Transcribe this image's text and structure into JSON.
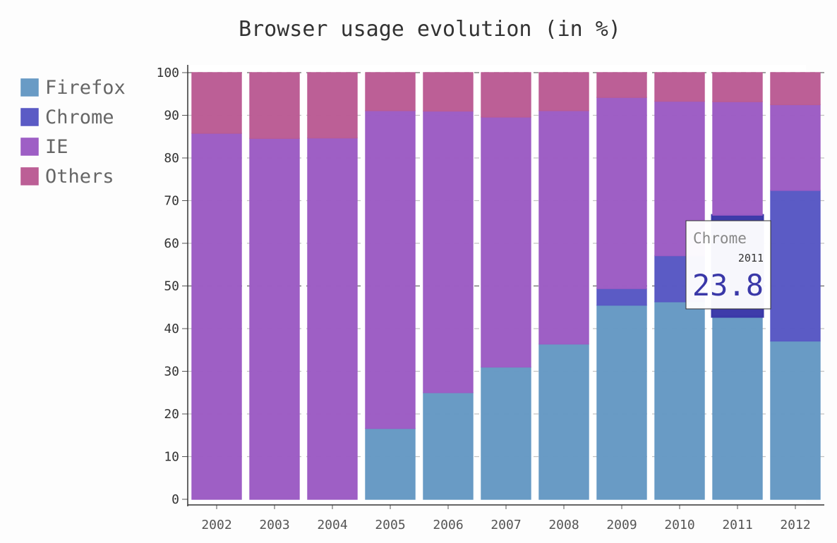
{
  "chart_data": {
    "type": "bar",
    "stacked": true,
    "title": "Browser usage evolution (in %)",
    "categories": [
      "2002",
      "2003",
      "2004",
      "2005",
      "2006",
      "2007",
      "2008",
      "2009",
      "2010",
      "2011",
      "2012"
    ],
    "series": [
      {
        "name": "Firefox",
        "color": "#6699c4",
        "values": [
          0,
          0,
          0,
          16.6,
          25,
          31,
          36.4,
          45.5,
          46.3,
          42.8,
          37.1
        ]
      },
      {
        "name": "Chrome",
        "color": "#5858c4",
        "values": [
          0,
          0,
          0,
          0,
          0,
          0,
          0,
          3.9,
          10.8,
          23.8,
          35.3
        ]
      },
      {
        "name": "IE",
        "color": "#9c5cc4",
        "values": [
          85.8,
          84.6,
          84.7,
          74.5,
          66,
          58.6,
          54.7,
          44.8,
          36.2,
          26.6,
          20.1
        ]
      },
      {
        "name": "Others",
        "color": "#bb5c94",
        "values": [
          14.2,
          15.4,
          15.3,
          8.9,
          9,
          10.4,
          8.9,
          5.8,
          6.7,
          6.8,
          7.5
        ]
      }
    ],
    "yticks": [
      0,
      10,
      20,
      30,
      40,
      50,
      60,
      70,
      80,
      90,
      100
    ],
    "ylim": [
      0,
      100
    ],
    "grid": true,
    "legend": "left",
    "highlight": {
      "series": 1,
      "category": 9
    }
  },
  "tooltip": {
    "series": "Chrome",
    "x": "2011",
    "value": "23.8",
    "color": "#3a38a8"
  }
}
